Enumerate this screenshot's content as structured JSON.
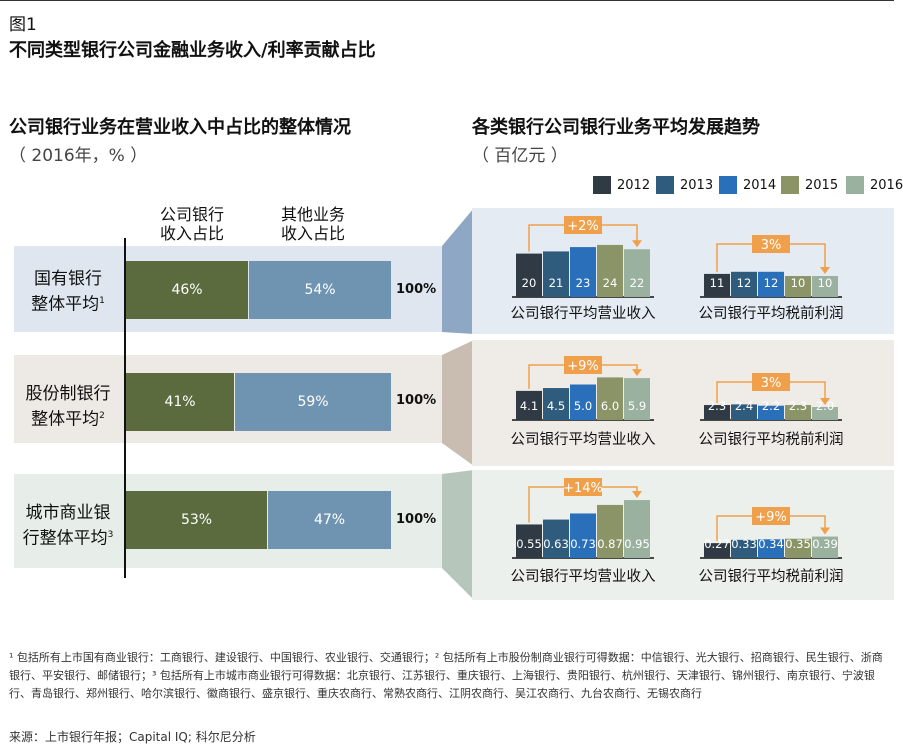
{
  "figure": {
    "label": "图1",
    "title": "不同类型银行公司金融业务收入/利率贡献占比"
  },
  "left": {
    "title": "公司银行业务在营业收入中占比的整体情况",
    "subtitle": "（ 2016年，% ）",
    "col1": [
      "公司银行",
      "收入占比"
    ],
    "col2": [
      "其他业务",
      "收入占比"
    ],
    "rows": [
      {
        "label": [
          "国有银行",
          "整体平均"
        ],
        "note": "1",
        "corp": "46%",
        "other": "54%",
        "total": "100%",
        "corp_value": 46
      },
      {
        "label": [
          "股份制银行",
          "整体平均"
        ],
        "note": "2",
        "corp": "41%",
        "other": "59%",
        "total": "100%",
        "corp_value": 41
      },
      {
        "label": [
          "城市商业银",
          "行整体平均"
        ],
        "note": "3",
        "corp": "53%",
        "other": "47%",
        "total": "100%",
        "corp_value": 53
      }
    ]
  },
  "right": {
    "title": "各类银行公司银行业务平均发展趋势",
    "subtitle": "（ 百亿元 ）",
    "legend": [
      "2012",
      "2013",
      "2014",
      "2015",
      "2016"
    ],
    "colors": {
      "2012": "#2f3a45",
      "2013": "#2f5b7c",
      "2014": "#2a6fba",
      "2015": "#8a9467",
      "2016": "#9bb1a0"
    },
    "revenue_label": "公司银行平均营业收入",
    "profit_label": "公司银行平均税前利润",
    "accent": "#f0a04b"
  },
  "chart_data": [
    {
      "type": "bar",
      "title": "国有银行整体平均",
      "xlabel": "公司银行平均营业收入",
      "categories": [
        "2012",
        "2013",
        "2014",
        "2015",
        "2016"
      ],
      "values": [
        20,
        21,
        23,
        24,
        22
      ],
      "labels": [
        "20",
        "21",
        "23",
        "24",
        "22"
      ],
      "change": "+2%"
    },
    {
      "type": "bar",
      "title": "国有银行整体平均",
      "xlabel": "公司银行平均税前利润",
      "categories": [
        "2012",
        "2013",
        "2014",
        "2015",
        "2016"
      ],
      "values": [
        11,
        12,
        12,
        10,
        10
      ],
      "labels": [
        "11",
        "12",
        "12",
        "10",
        "10"
      ],
      "change": "3%"
    },
    {
      "type": "bar",
      "title": "股份制银行整体平均",
      "xlabel": "公司银行平均营业收入",
      "categories": [
        "2012",
        "2013",
        "2014",
        "2015",
        "2016"
      ],
      "values": [
        4.1,
        4.5,
        5.0,
        6.0,
        5.9
      ],
      "labels": [
        "4.1",
        "4.5",
        "5.0",
        "6.0",
        "5.9"
      ],
      "change": "+9%"
    },
    {
      "type": "bar",
      "title": "股份制银行整体平均",
      "xlabel": "公司银行平均税前利润",
      "categories": [
        "2012",
        "2013",
        "2014",
        "2015",
        "2016"
      ],
      "values": [
        2.3,
        2.4,
        2.2,
        2.3,
        2.0
      ],
      "labels": [
        "2.3",
        "2.4",
        "2.2",
        "2.3",
        "2.0"
      ],
      "change": "3%"
    },
    {
      "type": "bar",
      "title": "城市商业银行整体平均",
      "xlabel": "公司银行平均营业收入",
      "categories": [
        "2012",
        "2013",
        "2014",
        "2015",
        "2016"
      ],
      "values": [
        0.55,
        0.63,
        0.73,
        0.87,
        0.95
      ],
      "labels": [
        "0.55",
        "0.63",
        "0.73",
        "0.87",
        "0.95"
      ],
      "change": "+14%"
    },
    {
      "type": "bar",
      "title": "城市商业银行整体平均",
      "xlabel": "公司银行平均税前利润",
      "categories": [
        "2012",
        "2013",
        "2014",
        "2015",
        "2016"
      ],
      "values": [
        0.27,
        0.33,
        0.34,
        0.35,
        0.39
      ],
      "labels": [
        "0.27",
        "0.33",
        "0.34",
        "0.35",
        "0.39"
      ],
      "change": "+9%"
    }
  ],
  "footnote": "¹ 包括所有上市国有商业银行：工商银行、建设银行、中国银行、农业银行、交通银行；² 包括所有上市股份制商业银行可得数据：中信银行、光大银行、招商银行、民生银行、浙商银行、平安银行、邮储银行；³ 包括所有上市城市商业银行可得数据：北京银行、江苏银行、重庆银行、上海银行、贵阳银行、杭州银行、天津银行、锦州银行、南京银行、宁波银行、青岛银行、郑州银行、哈尔滨银行、徽商银行、盛京银行、重庆农商行、常熟农商行、江阴农商行、吴江农商行、九台农商行、无锡农商行",
  "source": "来源：上市银行年报；Capital IQ; 科尔尼分析"
}
